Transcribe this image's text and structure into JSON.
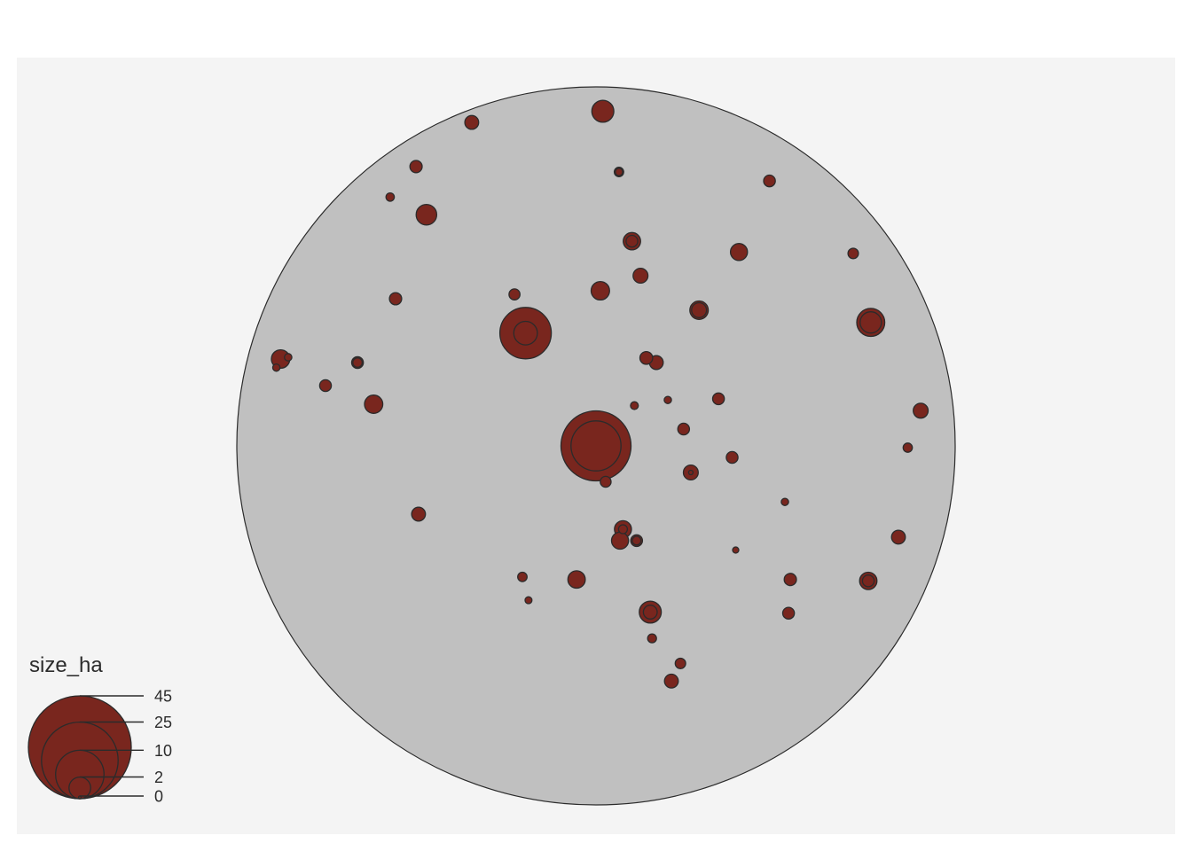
{
  "chart_data": {
    "type": "scatter",
    "variant": "proportional-symbol-map",
    "x_range": [
      -1,
      1
    ],
    "y_range": [
      -1,
      1
    ],
    "size_variable": "size_ha",
    "size_max_value": 45,
    "colors": {
      "panel": "#f4f4f4",
      "region_fill": "#c0c0c0",
      "outline": "#2b2b2b",
      "symbol_fill": "#79261e"
    },
    "legend": {
      "title": "size_ha",
      "position": "bottom-left",
      "breaks": [
        {
          "value": 45,
          "label": "45"
        },
        {
          "value": 25,
          "label": "25"
        },
        {
          "value": 10,
          "label": "10"
        },
        {
          "value": 2,
          "label": "2"
        },
        {
          "value": 0,
          "label": "0"
        }
      ]
    },
    "points": [
      {
        "x": 0.019,
        "y": 0.932,
        "size_ha": 2.05
      },
      {
        "x": -0.346,
        "y": 0.901,
        "size_ha": 0.82
      },
      {
        "x": 0.064,
        "y": 0.763,
        "size_ha": 0.38
      },
      {
        "x": 0.064,
        "y": 0.763,
        "size_ha": 0.22
      },
      {
        "x": -0.501,
        "y": 0.778,
        "size_ha": 0.64
      },
      {
        "x": 0.483,
        "y": 0.738,
        "size_ha": 0.58
      },
      {
        "x": -0.573,
        "y": 0.693,
        "size_ha": 0.29
      },
      {
        "x": -0.472,
        "y": 0.644,
        "size_ha": 1.79
      },
      {
        "x": 0.1,
        "y": 0.57,
        "size_ha": 1.29
      },
      {
        "x": 0.1,
        "y": 0.57,
        "size_ha": 0.58
      },
      {
        "x": 0.398,
        "y": 0.54,
        "size_ha": 1.23
      },
      {
        "x": 0.716,
        "y": 0.536,
        "size_ha": 0.47
      },
      {
        "x": 0.124,
        "y": 0.474,
        "size_ha": 0.94
      },
      {
        "x": 0.012,
        "y": 0.432,
        "size_ha": 1.46
      },
      {
        "x": -0.558,
        "y": 0.41,
        "size_ha": 0.64
      },
      {
        "x": -0.227,
        "y": 0.422,
        "size_ha": 0.52
      },
      {
        "x": 0.287,
        "y": 0.378,
        "size_ha": 1.46
      },
      {
        "x": 0.287,
        "y": 0.378,
        "size_ha": 0.94
      },
      {
        "x": 0.765,
        "y": 0.344,
        "size_ha": 3.34
      },
      {
        "x": 0.765,
        "y": 0.344,
        "size_ha": 1.92
      },
      {
        "x": -0.196,
        "y": 0.314,
        "size_ha": 11.26
      },
      {
        "x": -0.196,
        "y": 0.314,
        "size_ha": 2.38
      },
      {
        "x": -0.878,
        "y": 0.242,
        "size_ha": 1.46
      },
      {
        "x": -0.857,
        "y": 0.247,
        "size_ha": 0.24
      },
      {
        "x": -0.89,
        "y": 0.218,
        "size_ha": 0.23
      },
      {
        "x": -0.664,
        "y": 0.232,
        "size_ha": 0.58
      },
      {
        "x": -0.664,
        "y": 0.232,
        "size_ha": 0.38
      },
      {
        "x": 0.14,
        "y": 0.245,
        "size_ha": 0.7
      },
      {
        "x": 0.168,
        "y": 0.232,
        "size_ha": 0.82
      },
      {
        "x": -0.753,
        "y": 0.168,
        "size_ha": 0.58
      },
      {
        "x": -0.619,
        "y": 0.116,
        "size_ha": 1.41
      },
      {
        "x": 0.2,
        "y": 0.128,
        "size_ha": 0.23
      },
      {
        "x": 0.341,
        "y": 0.131,
        "size_ha": 0.58
      },
      {
        "x": 0.107,
        "y": 0.112,
        "size_ha": 0.26
      },
      {
        "x": 0.904,
        "y": 0.098,
        "size_ha": 0.94
      },
      {
        "x": 0.244,
        "y": 0.047,
        "size_ha": 0.58
      },
      {
        "x": 0.0,
        "y": 0.0,
        "size_ha": 20.92
      },
      {
        "x": 0.0,
        "y": 0.0,
        "size_ha": 10.63
      },
      {
        "x": 0.027,
        "y": -0.1,
        "size_ha": 0.49
      },
      {
        "x": 0.868,
        "y": -0.005,
        "size_ha": 0.36
      },
      {
        "x": 0.379,
        "y": -0.032,
        "size_ha": 0.58
      },
      {
        "x": 0.264,
        "y": -0.074,
        "size_ha": 0.94
      },
      {
        "x": 0.264,
        "y": -0.074,
        "size_ha": 0.04
      },
      {
        "x": 0.526,
        "y": -0.156,
        "size_ha": 0.22
      },
      {
        "x": -0.494,
        "y": -0.19,
        "size_ha": 0.82
      },
      {
        "x": 0.075,
        "y": -0.232,
        "size_ha": 1.23
      },
      {
        "x": 0.075,
        "y": -0.232,
        "size_ha": 0.34
      },
      {
        "x": 0.067,
        "y": -0.264,
        "size_ha": 1.23
      },
      {
        "x": 0.113,
        "y": -0.264,
        "size_ha": 0.58
      },
      {
        "x": 0.113,
        "y": -0.264,
        "size_ha": 0.32
      },
      {
        "x": 0.842,
        "y": -0.254,
        "size_ha": 0.82
      },
      {
        "x": 0.389,
        "y": -0.29,
        "size_ha": 0.16
      },
      {
        "x": -0.205,
        "y": -0.365,
        "size_ha": 0.38
      },
      {
        "x": -0.054,
        "y": -0.372,
        "size_ha": 1.29
      },
      {
        "x": 0.541,
        "y": -0.372,
        "size_ha": 0.64
      },
      {
        "x": 0.758,
        "y": -0.376,
        "size_ha": 1.29
      },
      {
        "x": 0.758,
        "y": -0.376,
        "size_ha": 0.58
      },
      {
        "x": -0.188,
        "y": -0.43,
        "size_ha": 0.2
      },
      {
        "x": 0.151,
        "y": -0.463,
        "size_ha": 2.05
      },
      {
        "x": 0.151,
        "y": -0.463,
        "size_ha": 0.82
      },
      {
        "x": 0.536,
        "y": -0.466,
        "size_ha": 0.58
      },
      {
        "x": 0.156,
        "y": -0.536,
        "size_ha": 0.34
      },
      {
        "x": 0.235,
        "y": -0.606,
        "size_ha": 0.47
      },
      {
        "x": 0.21,
        "y": -0.655,
        "size_ha": 0.82
      }
    ]
  }
}
